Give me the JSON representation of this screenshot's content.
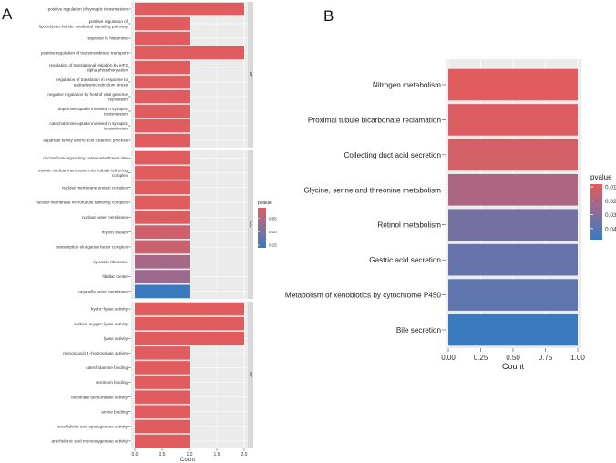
{
  "panel_labels": {
    "a": "A",
    "b": "B"
  },
  "colors": {
    "low_p": "#e05c5e",
    "mid_p": "#8a6d9a",
    "high_p": "#3a7bbf",
    "panel_bg": "#ebebeb",
    "grid": "#ffffff",
    "strip_bg": "#d9d9d9"
  },
  "chart_data": [
    {
      "type": "bar",
      "orientation": "horizontal",
      "title": "",
      "xlabel": "Count",
      "xlim": [
        0,
        2
      ],
      "xticks": [
        "0.0",
        "0.5",
        "1.0",
        "1.5",
        "2.0"
      ],
      "legend": {
        "title": "pvalue",
        "placement": "right",
        "ticks": [
          "0.05",
          "0.10",
          "0.15"
        ],
        "range": [
          0.01,
          0.16
        ]
      },
      "facets": [
        {
          "name": "BP",
          "categories": [
            "positive regulation of synaptic transmission",
            "positive regulation of lipopolysaccharide−mediated signaling pathway",
            "response to histamine",
            "positive regulation of transmembrane transport",
            "regulation of translational initiation by eIF2 alpha phosphorylation",
            "regulation of translation in response to endoplasmic reticulum stress",
            "negative regulation by host of viral genome replication",
            "dopamine uptake involved in synaptic transmission",
            "catecholamine uptake involved in synaptic transmission",
            "aspartate family amino acid catabolic process"
          ],
          "values": [
            2,
            1,
            1,
            2,
            1,
            1,
            1,
            1,
            1,
            1
          ],
          "pvalues": [
            0.01,
            0.01,
            0.01,
            0.01,
            0.01,
            0.01,
            0.01,
            0.01,
            0.01,
            0.01
          ]
        },
        {
          "name": "CC",
          "categories": [
            "microtubule organizing center attachment site",
            "meiotic nuclear membrane microtubule tethering complex",
            "nuclear membrane protein complex",
            "nuclear membrane microtubule tethering complex",
            "nuclear outer membrane",
            "myelin sheath",
            "transcription elongation factor complex",
            "cytosolic ribosome",
            "fibrillar center",
            "organelle outer membrane"
          ],
          "values": [
            1,
            1,
            1,
            1,
            1,
            1,
            1,
            1,
            1,
            1
          ],
          "pvalues": [
            0.01,
            0.01,
            0.01,
            0.01,
            0.015,
            0.025,
            0.03,
            0.06,
            0.07,
            0.16
          ]
        },
        {
          "name": "MF",
          "categories": [
            "hydro−lyase activity",
            "carbon−oxygen lyase activity",
            "lyase activity",
            "retinoic acid 4−hydroxylase activity",
            "catecholamine binding",
            "serotonin binding",
            "carbonate dehydratase activity",
            "amine binding",
            "arachidonic acid epoxygenase activity",
            "arachidonic acid monooxygenase activity"
          ],
          "values": [
            2,
            2,
            2,
            1,
            1,
            1,
            1,
            1,
            1,
            1
          ],
          "pvalues": [
            0.01,
            0.01,
            0.01,
            0.01,
            0.01,
            0.01,
            0.01,
            0.01,
            0.01,
            0.01
          ]
        }
      ]
    },
    {
      "type": "bar",
      "orientation": "horizontal",
      "title": "",
      "xlabel": "Count",
      "xlim": [
        0,
        1
      ],
      "xticks": [
        "0.00",
        "0.25",
        "0.50",
        "0.75",
        "1.00"
      ],
      "legend": {
        "title": "pvalue",
        "placement": "right",
        "ticks": [
          "0.01",
          "0.02",
          "0.03",
          "0.04"
        ],
        "range": [
          0.008,
          0.048
        ]
      },
      "categories": [
        "Nitrogen metabolism",
        "Proximal tubule bicarbonate reclamation",
        "Collecting duct acid secretion",
        "Glycine, serine and threonine metabolism",
        "Retinol metabolism",
        "Gastric acid secretion",
        "Metabolism of xenobiotics by cytochrome P450",
        "Bile secretion"
      ],
      "values": [
        1,
        1,
        1,
        1,
        1,
        1,
        1,
        1
      ],
      "pvalues": [
        0.008,
        0.009,
        0.011,
        0.02,
        0.033,
        0.037,
        0.039,
        0.048
      ]
    }
  ]
}
